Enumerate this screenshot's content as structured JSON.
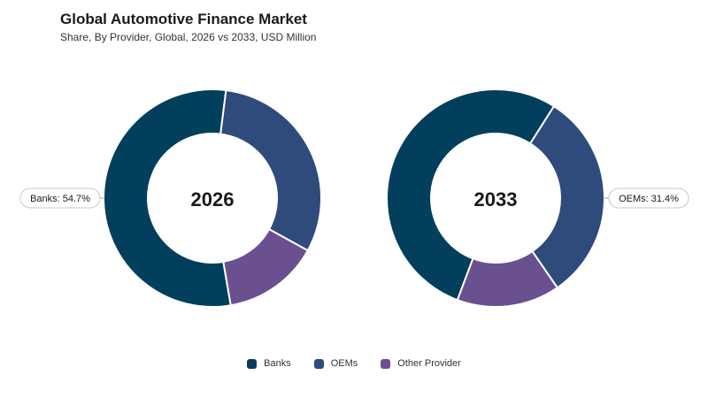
{
  "title": "Global Automotive Finance Market",
  "subtitle": "Share, By Provider, Global, 2026 vs 2033, USD Million",
  "colors": {
    "Banks": "#013f5c",
    "OEMs": "#2e4b7c",
    "Other Provider": "#6b5090"
  },
  "chart_data": [
    {
      "type": "pie",
      "title": "2026",
      "categories": [
        "Banks",
        "OEMs",
        "Other Provider"
      ],
      "values": [
        54.7,
        31.0,
        14.3
      ],
      "callout": {
        "category": "Banks",
        "text": "Banks: 54.7%",
        "side": "left"
      }
    },
    {
      "type": "pie",
      "title": "2033",
      "categories": [
        "Banks",
        "OEMs",
        "Other Provider"
      ],
      "values": [
        53.3,
        31.4,
        15.3
      ],
      "callout": {
        "category": "OEMs",
        "text": "OEMs: 31.4%",
        "side": "right"
      }
    }
  ],
  "legend": {
    "placement": "bottom-center",
    "items": [
      "Banks",
      "OEMs",
      "Other Provider"
    ]
  }
}
